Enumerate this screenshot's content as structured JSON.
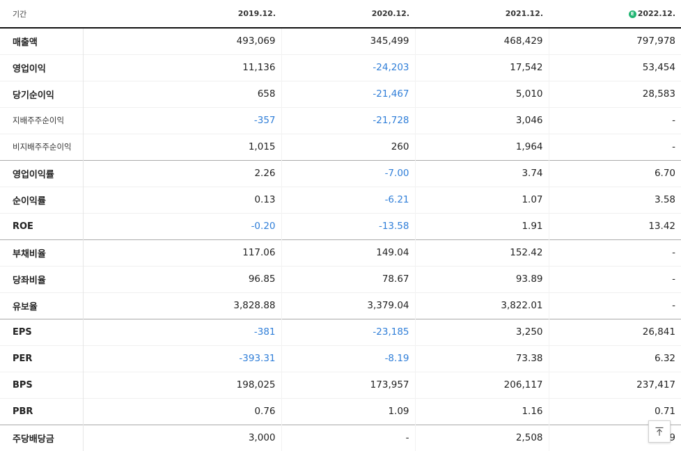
{
  "header": {
    "label": "기간",
    "estimate_marker": "E",
    "periods": [
      "2019.12.",
      "2020.12.",
      "2021.12.",
      "2022.12."
    ]
  },
  "rows": [
    {
      "label": "매출액",
      "values": [
        "493,069",
        "345,499",
        "468,429",
        "797,978"
      ]
    },
    {
      "label": "영업이익",
      "values": [
        "11,136",
        "-24,203",
        "17,542",
        "53,454"
      ]
    },
    {
      "label": "당기순이익",
      "values": [
        "658",
        "-21,467",
        "5,010",
        "28,583"
      ]
    },
    {
      "label": "지배주주순이익",
      "values": [
        "-357",
        "-21,728",
        "3,046",
        "-"
      ]
    },
    {
      "label": "비지배주주순이익",
      "values": [
        "1,015",
        "260",
        "1,964",
        "-"
      ]
    },
    {
      "label": "영업이익률",
      "values": [
        "2.26",
        "-7.00",
        "3.74",
        "6.70"
      ]
    },
    {
      "label": "순이익률",
      "values": [
        "0.13",
        "-6.21",
        "1.07",
        "3.58"
      ]
    },
    {
      "label": "ROE",
      "values": [
        "-0.20",
        "-13.58",
        "1.91",
        "13.42"
      ]
    },
    {
      "label": "부채비율",
      "values": [
        "117.06",
        "149.04",
        "152.42",
        "-"
      ]
    },
    {
      "label": "당좌비율",
      "values": [
        "96.85",
        "78.67",
        "93.89",
        "-"
      ]
    },
    {
      "label": "유보율",
      "values": [
        "3,828.88",
        "3,379.04",
        "3,822.01",
        "-"
      ]
    },
    {
      "label": "EPS",
      "values": [
        "-381",
        "-23,185",
        "3,250",
        "26,841"
      ]
    },
    {
      "label": "PER",
      "values": [
        "-393.31",
        "-8.19",
        "73.38",
        "6.32"
      ]
    },
    {
      "label": "BPS",
      "values": [
        "198,025",
        "173,957",
        "206,117",
        "237,417"
      ]
    },
    {
      "label": "PBR",
      "values": [
        "0.76",
        "1.09",
        "1.16",
        "0.71"
      ]
    },
    {
      "label": "주당배당금",
      "values": [
        "3,000",
        "-",
        "2,508",
        "1,...9"
      ]
    }
  ],
  "colors": {
    "negative_value": "#2f7ed8",
    "estimate_badge": "#21b573"
  },
  "scroll_top_icon": "arrow-up-to-top-icon"
}
